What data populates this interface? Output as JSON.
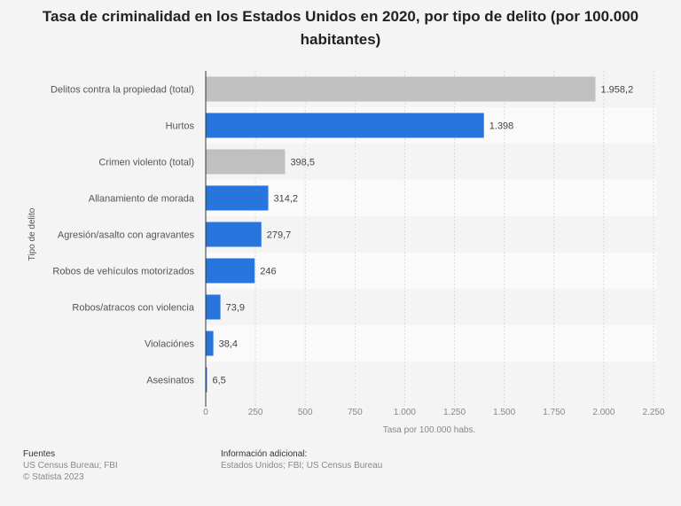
{
  "chart_data": {
    "type": "bar",
    "orientation": "horizontal",
    "title": "Tasa de criminalidad en los Estados Unidos en 2020, por tipo de delito (por 100.000 habitantes)",
    "xlabel": "Tasa por 100.000 habs.",
    "ylabel": "Tipo de delito",
    "xlim": [
      0,
      2250
    ],
    "xticks": [
      "0",
      "250",
      "500",
      "750",
      "1.000",
      "1.250",
      "1.500",
      "1.750",
      "2.000",
      "2.250"
    ],
    "grid": true,
    "categories": [
      "Delitos contra la propiedad (total)",
      "Hurtos",
      "Crimen violento (total)",
      "Allanamiento de morada",
      "Agresión/asalto con agravantes",
      "Robos de vehículos motorizados",
      "Robos/atracos con violencia",
      "Violaciónes",
      "Asesinatos"
    ],
    "values": [
      1958.2,
      1398,
      398.5,
      314.2,
      279.7,
      246,
      73.9,
      38.4,
      6.5
    ],
    "labels": [
      "1.958,2",
      "1.398",
      "398,5",
      "314,2",
      "279,7",
      "246",
      "73,9",
      "38,4",
      "6,5"
    ],
    "bar_colors": [
      "#c0c0c0",
      "#2876dd",
      "#c0c0c0",
      "#2876dd",
      "#2876dd",
      "#2876dd",
      "#2876dd",
      "#2876dd",
      "#2876dd"
    ]
  },
  "footer": {
    "sources_heading": "Fuentes",
    "sources": "US Census Bureau; FBI",
    "copyright": "© Statista 2023",
    "info_heading": "Información adicional:",
    "info": "Estados Unidos; FBI; US Census Bureau"
  }
}
